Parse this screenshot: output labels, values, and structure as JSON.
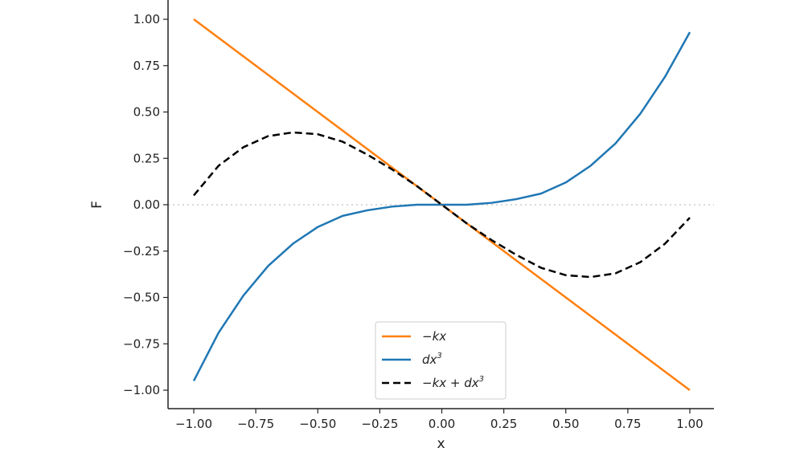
{
  "chart_data": {
    "type": "line",
    "xlabel": "x",
    "ylabel": "F",
    "xlim": [
      -1.0,
      1.0
    ],
    "ylim": [
      -1.0,
      1.0
    ],
    "xticks": [
      "−1.00",
      "−0.75",
      "−0.50",
      "−0.25",
      "0.00",
      "0.25",
      "0.50",
      "0.75",
      "1.00"
    ],
    "yticks": [
      "−1.00",
      "−0.75",
      "−0.50",
      "−0.25",
      "0.00",
      "0.25",
      "0.50",
      "0.75",
      "1.00"
    ],
    "grid": false,
    "zero_reference_line": {
      "y": 0,
      "style": "dotted",
      "color": "#cccccc"
    },
    "legend_position": "bottom-center",
    "series": [
      {
        "name": "−kx",
        "legend": {
          "main": "−kx",
          "sup": ""
        },
        "color": "#ff7f0e",
        "style": "solid",
        "x": [
          -1.0,
          -0.75,
          -0.5,
          -0.25,
          0.0,
          0.25,
          0.5,
          0.75,
          1.0
        ],
        "y": [
          1.0,
          0.75,
          0.5,
          0.25,
          0.0,
          -0.25,
          -0.5,
          -0.75,
          -1.0
        ]
      },
      {
        "name": "dx³",
        "legend": {
          "main": "dx",
          "sup": "3"
        },
        "color": "#1f77b4",
        "style": "solid",
        "x": [
          -1.0,
          -0.9,
          -0.8,
          -0.7,
          -0.6,
          -0.5,
          -0.4,
          -0.3,
          -0.2,
          -0.1,
          0.0,
          0.1,
          0.2,
          0.3,
          0.4,
          0.5,
          0.6,
          0.7,
          0.8,
          0.9,
          1.0
        ],
        "y": [
          -0.95,
          -0.69,
          -0.49,
          -0.33,
          -0.21,
          -0.12,
          -0.06,
          -0.03,
          -0.01,
          0.0,
          0.0,
          0.0,
          0.01,
          0.03,
          0.06,
          0.12,
          0.21,
          0.33,
          0.49,
          0.69,
          0.93
        ]
      },
      {
        "name": "−kx + dx³",
        "legend": {
          "main": "−kx + dx",
          "sup": "3"
        },
        "color": "#000000",
        "style": "dashed",
        "x": [
          -1.0,
          -0.9,
          -0.8,
          -0.7,
          -0.6,
          -0.5,
          -0.4,
          -0.3,
          -0.2,
          -0.1,
          0.0,
          0.1,
          0.2,
          0.3,
          0.4,
          0.5,
          0.6,
          0.7,
          0.8,
          0.9,
          1.0
        ],
        "y": [
          0.05,
          0.21,
          0.31,
          0.37,
          0.39,
          0.38,
          0.34,
          0.27,
          0.19,
          0.1,
          0.0,
          -0.1,
          -0.19,
          -0.27,
          -0.34,
          -0.38,
          -0.39,
          -0.37,
          -0.31,
          -0.21,
          -0.07
        ]
      }
    ]
  }
}
